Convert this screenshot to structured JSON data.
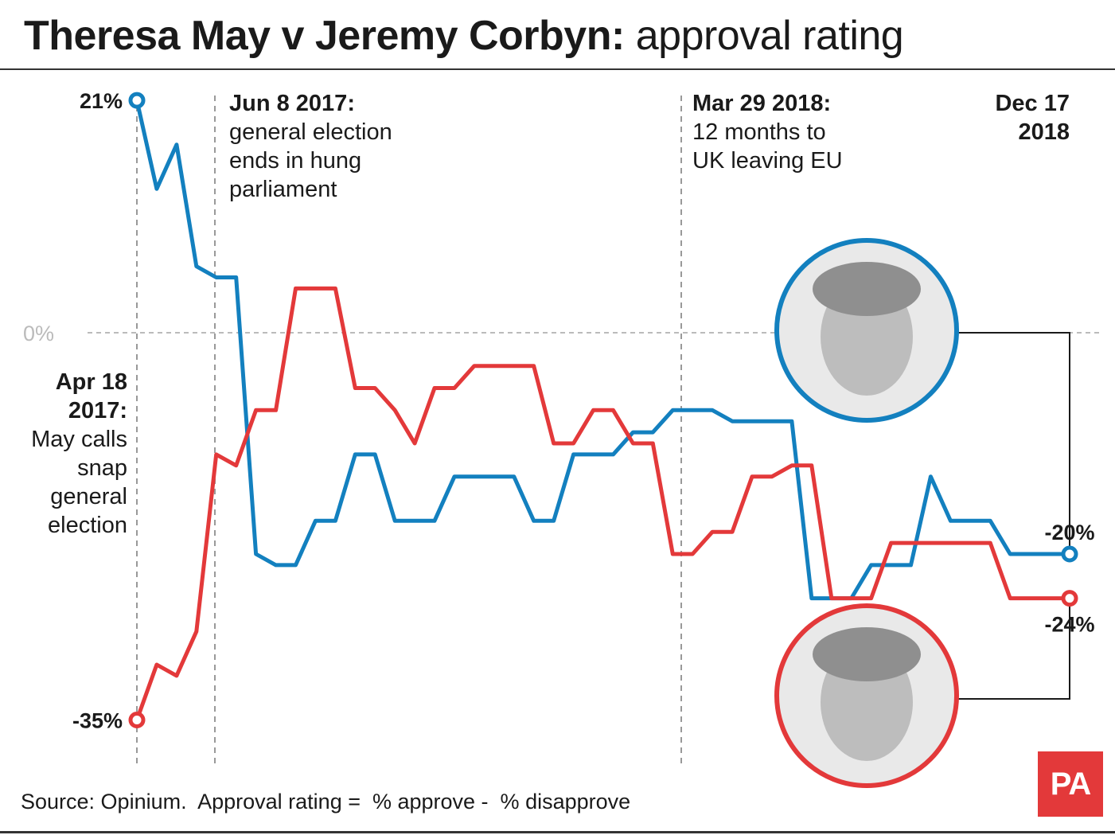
{
  "header": {
    "title_bold": "Theresa May v Jeremy Corbyn:",
    "title_light": " approval rating"
  },
  "annotations": {
    "apr18": {
      "head": "Apr 18 2017:",
      "body": "May calls snap general election"
    },
    "jun8": {
      "head": "Jun 8 2017:",
      "body": "general election ends in hung parliament"
    },
    "mar29": {
      "head": "Mar 29 2018:",
      "body": "12 months to UK leaving EU"
    },
    "dec17": {
      "head": "Dec 17 2018"
    }
  },
  "footer": {
    "source": "Source: Opinium.  Approval rating =  % approve -  % disapprove",
    "logo": "PA"
  },
  "colors": {
    "may": "#1380bf",
    "corbyn": "#e3393a",
    "zero_line": "#bbbbbb",
    "event_line": "#999999"
  },
  "chart_data": {
    "type": "line",
    "title": "Theresa May v Jeremy Corbyn: approval rating",
    "xlabel": "",
    "ylabel": "",
    "zero_label": "0%",
    "ylim": [
      -37,
      23
    ],
    "x": [
      0,
      1,
      2,
      3,
      4,
      5,
      6,
      7,
      8,
      9,
      10,
      11,
      12,
      13,
      14,
      15,
      16,
      17,
      18,
      19,
      20,
      21,
      22,
      23,
      24,
      25,
      26,
      27,
      28,
      29,
      30,
      31,
      32,
      33,
      34,
      35,
      36,
      37,
      38,
      39,
      40,
      41,
      42,
      43,
      44,
      45,
      46,
      47
    ],
    "series": [
      {
        "name": "Theresa May",
        "values": [
          21,
          13,
          17,
          6,
          5,
          5,
          -20,
          -21,
          -21,
          -17,
          -17,
          -11,
          -11,
          -17,
          -17,
          -17,
          -13,
          -13,
          -13,
          -13,
          -17,
          -17,
          -11,
          -11,
          -11,
          -9,
          -9,
          -7,
          -7,
          -7,
          -8,
          -8,
          -8,
          -8,
          -24,
          -24,
          -24,
          -21,
          -21,
          -21,
          -13,
          -17,
          -17,
          -17,
          -20,
          -20,
          -20,
          -20
        ],
        "end_label": "-20%",
        "start_label": "21%"
      },
      {
        "name": "Jeremy Corbyn",
        "values": [
          -35,
          -30,
          -31,
          -27,
          -11,
          -12,
          -7,
          -7,
          4,
          4,
          4,
          -5,
          -5,
          -7,
          -10,
          -5,
          -5,
          -3,
          -3,
          -3,
          -3,
          -10,
          -10,
          -7,
          -7,
          -10,
          -10,
          -20,
          -20,
          -18,
          -18,
          -13,
          -13,
          -12,
          -12,
          -24,
          -24,
          -24,
          -19,
          -19,
          -19,
          -19,
          -19,
          -19,
          -24,
          -24,
          -24,
          -24
        ],
        "end_label": "-24%",
        "start_label": "-35%"
      }
    ],
    "events": [
      "Apr 18 2017",
      "Jun 8 2017",
      "Mar 29 2018",
      "Dec 17 2018"
    ]
  }
}
